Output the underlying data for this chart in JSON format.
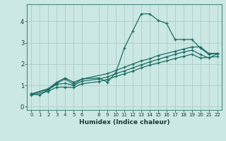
{
  "background_color": "#cce8e4",
  "grid_color": "#aaccc8",
  "line_color": "#1a6e64",
  "xlabel": "Humidex (Indice chaleur)",
  "xlim": [
    -0.5,
    22.5
  ],
  "ylim": [
    -0.15,
    4.8
  ],
  "yticks": [
    0,
    1,
    2,
    3,
    4
  ],
  "xticks": [
    0,
    1,
    2,
    3,
    4,
    5,
    6,
    8,
    9,
    10,
    11,
    12,
    13,
    14,
    15,
    16,
    17,
    18,
    19,
    20,
    21,
    22
  ],
  "series1_x": [
    0,
    1,
    2,
    3,
    4,
    5,
    6,
    8,
    9,
    10,
    11,
    12,
    13,
    14,
    15,
    16,
    17,
    18,
    19,
    20,
    21,
    22
  ],
  "series1_y": [
    0.6,
    0.55,
    0.8,
    1.1,
    1.3,
    1.05,
    1.3,
    1.35,
    1.15,
    1.6,
    2.75,
    3.55,
    4.35,
    4.35,
    4.05,
    3.9,
    3.15,
    3.15,
    3.15,
    2.75,
    2.45,
    2.5
  ],
  "series2_x": [
    0,
    2,
    3,
    4,
    5,
    6,
    9,
    10,
    11,
    12,
    13,
    14,
    15,
    17,
    18,
    19,
    20,
    21,
    22
  ],
  "series2_y": [
    0.6,
    0.85,
    1.15,
    1.35,
    1.15,
    1.3,
    1.55,
    1.7,
    1.85,
    2.0,
    2.15,
    2.25,
    2.4,
    2.6,
    2.7,
    2.8,
    2.8,
    2.5,
    2.5
  ],
  "series3_x": [
    0,
    2,
    3,
    4,
    5,
    6,
    8,
    9,
    10,
    11,
    12,
    13,
    14,
    15,
    16,
    17,
    18,
    19,
    20,
    21,
    22
  ],
  "series3_y": [
    0.6,
    0.8,
    1.05,
    1.1,
    1.0,
    1.2,
    1.3,
    1.4,
    1.55,
    1.68,
    1.82,
    1.96,
    2.1,
    2.22,
    2.34,
    2.46,
    2.56,
    2.65,
    2.45,
    2.28,
    2.48
  ],
  "series4_x": [
    0,
    2,
    3,
    4,
    5,
    6,
    8,
    9,
    10,
    11,
    12,
    13,
    14,
    15,
    16,
    17,
    18,
    19,
    20,
    22
  ],
  "series4_y": [
    0.55,
    0.72,
    0.92,
    0.92,
    0.9,
    1.08,
    1.18,
    1.28,
    1.42,
    1.54,
    1.67,
    1.82,
    1.95,
    2.05,
    2.15,
    2.26,
    2.36,
    2.46,
    2.28,
    2.35
  ]
}
